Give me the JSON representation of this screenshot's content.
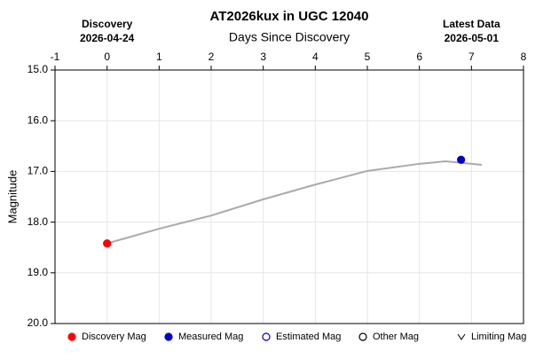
{
  "chart_data": {
    "type": "scatter",
    "title": "AT2026kux in UGC 12040",
    "x_label": "Days Since Discovery",
    "y_label": "Magnitude",
    "xlim": [
      -1,
      8
    ],
    "xticks": [
      -1,
      0,
      1,
      2,
      3,
      4,
      5,
      6,
      7,
      8
    ],
    "ylim": [
      15,
      20
    ],
    "y_inverted": true,
    "yticks": [
      {
        "value": 15,
        "label": "15.0"
      },
      {
        "value": 16,
        "label": "16.0"
      },
      {
        "value": 17,
        "label": "17.0"
      },
      {
        "value": 18,
        "label": "18.0"
      },
      {
        "value": 19,
        "label": "19.0"
      },
      {
        "value": 20,
        "label": "20.0"
      }
    ],
    "grid": true,
    "annotations": [
      {
        "x": 0,
        "label": "Discovery",
        "date": "2026-04-24"
      },
      {
        "x": 7,
        "label": "Latest Data",
        "date": "2026-05-01"
      }
    ],
    "curve": {
      "color": "#aaaaaa",
      "x": [
        0,
        1,
        2,
        3,
        4,
        5,
        6,
        6.5,
        7.2
      ],
      "values": [
        18.42,
        18.13,
        17.87,
        17.55,
        17.26,
        16.99,
        16.85,
        16.8,
        16.87
      ]
    },
    "series": [
      {
        "name": "Discovery Mag",
        "color": "#ff0000",
        "marker": "filled",
        "x": [
          0
        ],
        "values": [
          18.42
        ]
      },
      {
        "name": "Measured Mag",
        "color": "#0000cc",
        "marker": "filled",
        "x": [
          6.8
        ],
        "values": [
          16.77
        ]
      },
      {
        "name": "Estimated Mag",
        "color": "#0000cc",
        "marker": "open",
        "x": [],
        "values": []
      },
      {
        "name": "Other Mag",
        "color": "#000000",
        "marker": "open",
        "x": [],
        "values": []
      },
      {
        "name": "Limiting Mag",
        "color": "#000000",
        "marker": "v",
        "x": [],
        "values": []
      }
    ]
  }
}
